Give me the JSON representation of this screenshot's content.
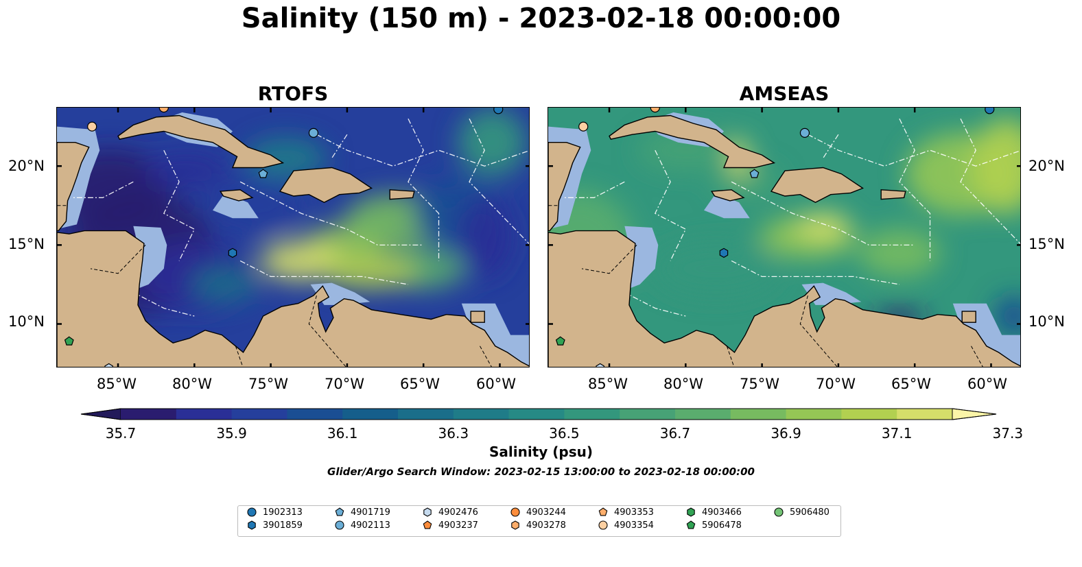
{
  "title": "Salinity (150 m) - 2023-02-18 00:00:00",
  "panels": [
    {
      "title": "RTOFS",
      "palette": "low"
    },
    {
      "title": "AMSEAS",
      "palette": "high"
    }
  ],
  "lon_ticks": [
    "85°W",
    "80°W",
    "75°W",
    "70°W",
    "65°W",
    "60°W"
  ],
  "lat_ticks": [
    "20°N",
    "15°N",
    "10°N"
  ],
  "colorbar": {
    "label": "Salinity (psu)",
    "ticks": [
      "35.7",
      "35.9",
      "36.1",
      "36.3",
      "36.5",
      "36.7",
      "36.9",
      "37.1",
      "37.3"
    ],
    "colors": [
      "#2a1c6f",
      "#2a2f96",
      "#253f9c",
      "#1a4e93",
      "#155e8b",
      "#1a6e8a",
      "#1f7c88",
      "#268a85",
      "#33977d",
      "#47a276",
      "#5aad6e",
      "#77bb60",
      "#95c655",
      "#b2d050",
      "#d5de6a"
    ],
    "extend_low": "#221a5a",
    "extend_high": "#fbf5a8"
  },
  "search_window": "Glider/Argo Search Window: 2023-02-15 13:00:00 to 2023-02-18 00:00:00",
  "land_color": "#d2b48c",
  "shelf_color": "#9bb7e0",
  "legend": [
    {
      "id": "1902313",
      "marker": "circle",
      "color": "#1f77b4"
    },
    {
      "id": "3901859",
      "marker": "hexagon",
      "color": "#1f77b4"
    },
    {
      "id": "4901719",
      "marker": "pentagon",
      "color": "#6baed6"
    },
    {
      "id": "4902113",
      "marker": "circle",
      "color": "#6baed6"
    },
    {
      "id": "4902476",
      "marker": "hexagon",
      "color": "#c6dbef"
    },
    {
      "id": "4903237",
      "marker": "pentagon",
      "color": "#fd8d3c"
    },
    {
      "id": "4903244",
      "marker": "circle",
      "color": "#fd8d3c"
    },
    {
      "id": "4903278",
      "marker": "hexagon",
      "color": "#fdae6b"
    },
    {
      "id": "4903353",
      "marker": "pentagon",
      "color": "#fdae6b"
    },
    {
      "id": "4903354",
      "marker": "circle",
      "color": "#fdd0a2"
    },
    {
      "id": "4903466",
      "marker": "hexagon",
      "color": "#31a354"
    },
    {
      "id": "5906478",
      "marker": "pentagon",
      "color": "#31a354"
    },
    {
      "id": "5906480",
      "marker": "circle",
      "color": "#74c476"
    }
  ]
}
